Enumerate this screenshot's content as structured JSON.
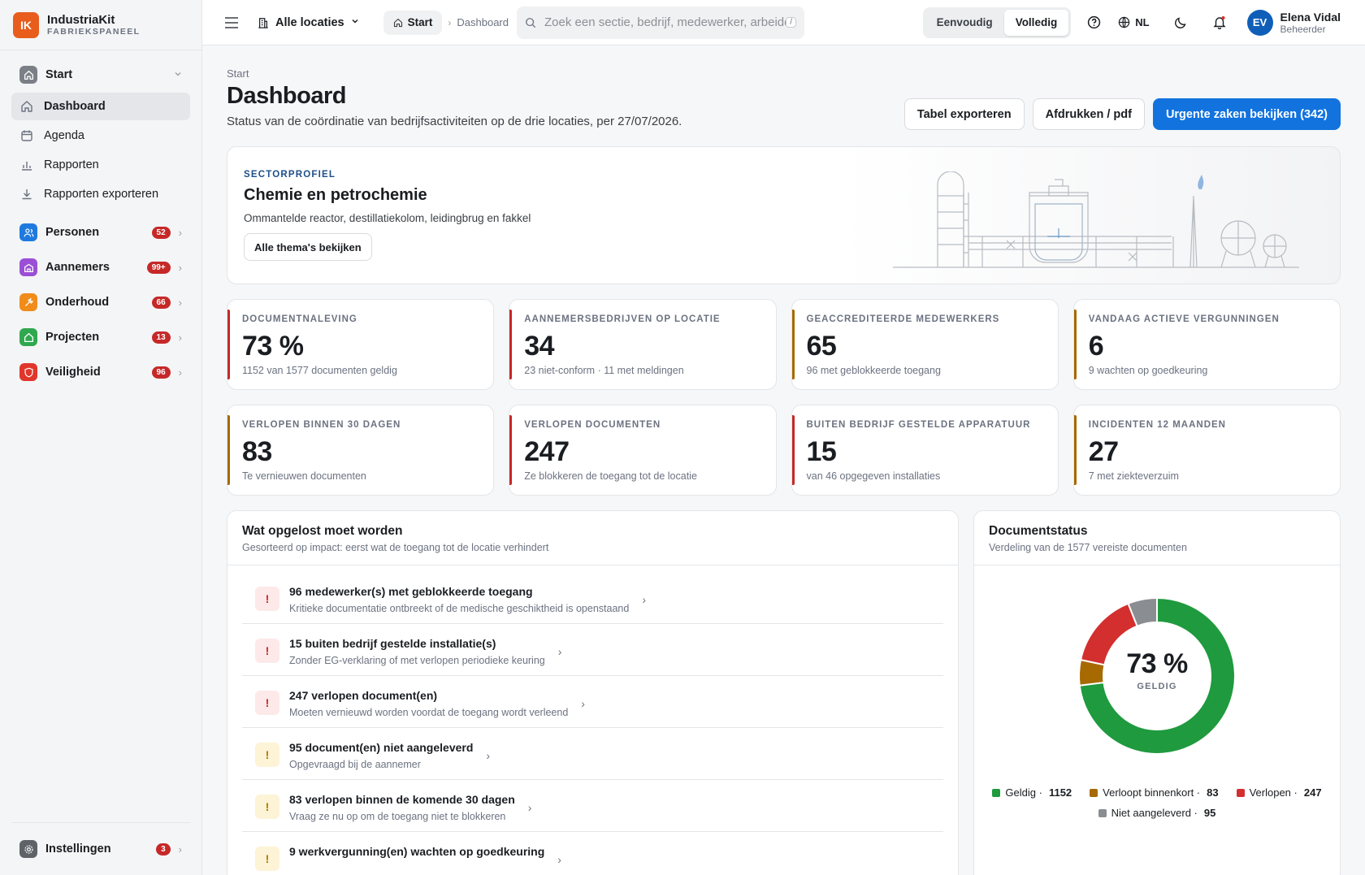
{
  "brand": {
    "initials": "IK",
    "name": "IndustriaKit",
    "sub": "FABRIEKSPANEEL"
  },
  "sidebar": {
    "start_group": "Start",
    "items": [
      {
        "label": "Dashboard",
        "icon": "home-icon"
      },
      {
        "label": "Agenda",
        "icon": "calendar-icon"
      },
      {
        "label": "Rapporten",
        "icon": "bar-chart-icon"
      },
      {
        "label": "Rapporten exporteren",
        "icon": "download-icon"
      }
    ],
    "modules": [
      {
        "label": "Personen",
        "badge": "52",
        "color": "#1f7ae0"
      },
      {
        "label": "Aannemers",
        "badge": "99+",
        "color": "#9b4fd6"
      },
      {
        "label": "Onderhoud",
        "badge": "66",
        "color": "#f08c1a"
      },
      {
        "label": "Projecten",
        "badge": "13",
        "color": "#2fa84f"
      },
      {
        "label": "Veiligheid",
        "badge": "96",
        "color": "#e0362b"
      }
    ],
    "settings": {
      "label": "Instellingen",
      "badge": "3"
    }
  },
  "topbar": {
    "location": "Alle locaties",
    "crumb_start": "Start",
    "crumb_current": "Dashboard",
    "search_placeholder": "Zoek een sectie, bedrijf, medewerker, arbeider...",
    "search_kbd": "/",
    "mode_simple": "Eenvoudig",
    "mode_full": "Volledig",
    "lang": "NL",
    "user_initials": "EV",
    "user_name": "Elena Vidal",
    "user_role": "Beheerder"
  },
  "page": {
    "breadcrumb": "Start",
    "title": "Dashboard",
    "subtitle": "Status van de coördinatie van bedrijfsactiviteiten op de drie locaties, per 27/07/2026.",
    "btn_export": "Tabel exporteren",
    "btn_print": "Afdrukken / pdf",
    "btn_urgent": "Urgente zaken bekijken (342)"
  },
  "hero": {
    "tag": "SECTORPROFIEL",
    "title": "Chemie en petrochemie",
    "desc": "Ommantelde reactor, destillatiekolom, leidingbrug en fakkel",
    "button": "Alle thema's bekijken"
  },
  "kpis": [
    {
      "label": "DOCUMENTNALEVING",
      "value": "73 %",
      "sub": "1152 van 1577 documenten geldig",
      "accent": "#c62828"
    },
    {
      "label": "AANNEMERSBEDRIJVEN OP LOCATIE",
      "value": "34",
      "sub": "23 niet-conform · 11 met meldingen",
      "accent": "#c62828"
    },
    {
      "label": "GEACCREDITEERDE MEDEWERKERS",
      "value": "65",
      "sub": "96 met geblokkeerde toegang",
      "accent": "#a66a00"
    },
    {
      "label": "VANDAAG ACTIEVE VERGUNNINGEN",
      "value": "6",
      "sub": "9 wachten op goedkeuring",
      "accent": "#a66a00"
    },
    {
      "label": "VERLOPEN BINNEN 30 DAGEN",
      "value": "83",
      "sub": "Te vernieuwen documenten",
      "accent": "#a66a00"
    },
    {
      "label": "VERLOPEN DOCUMENTEN",
      "value": "247",
      "sub": "Ze blokkeren de toegang tot de locatie",
      "accent": "#c62828"
    },
    {
      "label": "BUITEN BEDRIJF GESTELDE APPARATUUR",
      "value": "15",
      "sub": "van 46 opgegeven installaties",
      "accent": "#c62828"
    },
    {
      "label": "INCIDENTEN 12 MAANDEN",
      "value": "27",
      "sub": "7 met ziekteverzuim",
      "accent": "#a66a00"
    }
  ],
  "todo": {
    "title": "Wat opgelost moet worden",
    "sub": "Gesorteerd op impact: eerst wat de toegang tot de locatie verhindert",
    "items": [
      {
        "title": "96 medewerker(s) met geblokkeerde toegang",
        "sub": "Kritieke documentatie ontbreekt of de medische geschiktheid is openstaand",
        "level": "red"
      },
      {
        "title": "15 buiten bedrijf gestelde installatie(s)",
        "sub": "Zonder EG-verklaring of met verlopen periodieke keuring",
        "level": "red"
      },
      {
        "title": "247 verlopen document(en)",
        "sub": "Moeten vernieuwd worden voordat de toegang wordt verleend",
        "level": "red"
      },
      {
        "title": "95 document(en) niet aangeleverd",
        "sub": "Opgevraagd bij de aannemer",
        "level": "yellow"
      },
      {
        "title": "83 verlopen binnen de komende 30 dagen",
        "sub": "Vraag ze nu op om de toegang niet te blokkeren",
        "level": "yellow"
      },
      {
        "title": "9 werkvergunning(en) wachten op goedkeuring",
        "sub": "",
        "level": "yellow"
      }
    ]
  },
  "docs": {
    "title": "Documentstatus",
    "sub": "Verdeling van de 1577 vereiste documenten",
    "center_value": "73 %",
    "center_label": "GELDIG",
    "chart_data": {
      "type": "pie",
      "categories": [
        "Geldig",
        "Verloopt binnenkort",
        "Verlopen",
        "Niet aangeleverd"
      ],
      "values": [
        1152,
        83,
        247,
        95
      ],
      "colors": [
        "#1f9a3e",
        "#a66a00",
        "#d32f2f",
        "#8a8d91"
      ]
    }
  }
}
